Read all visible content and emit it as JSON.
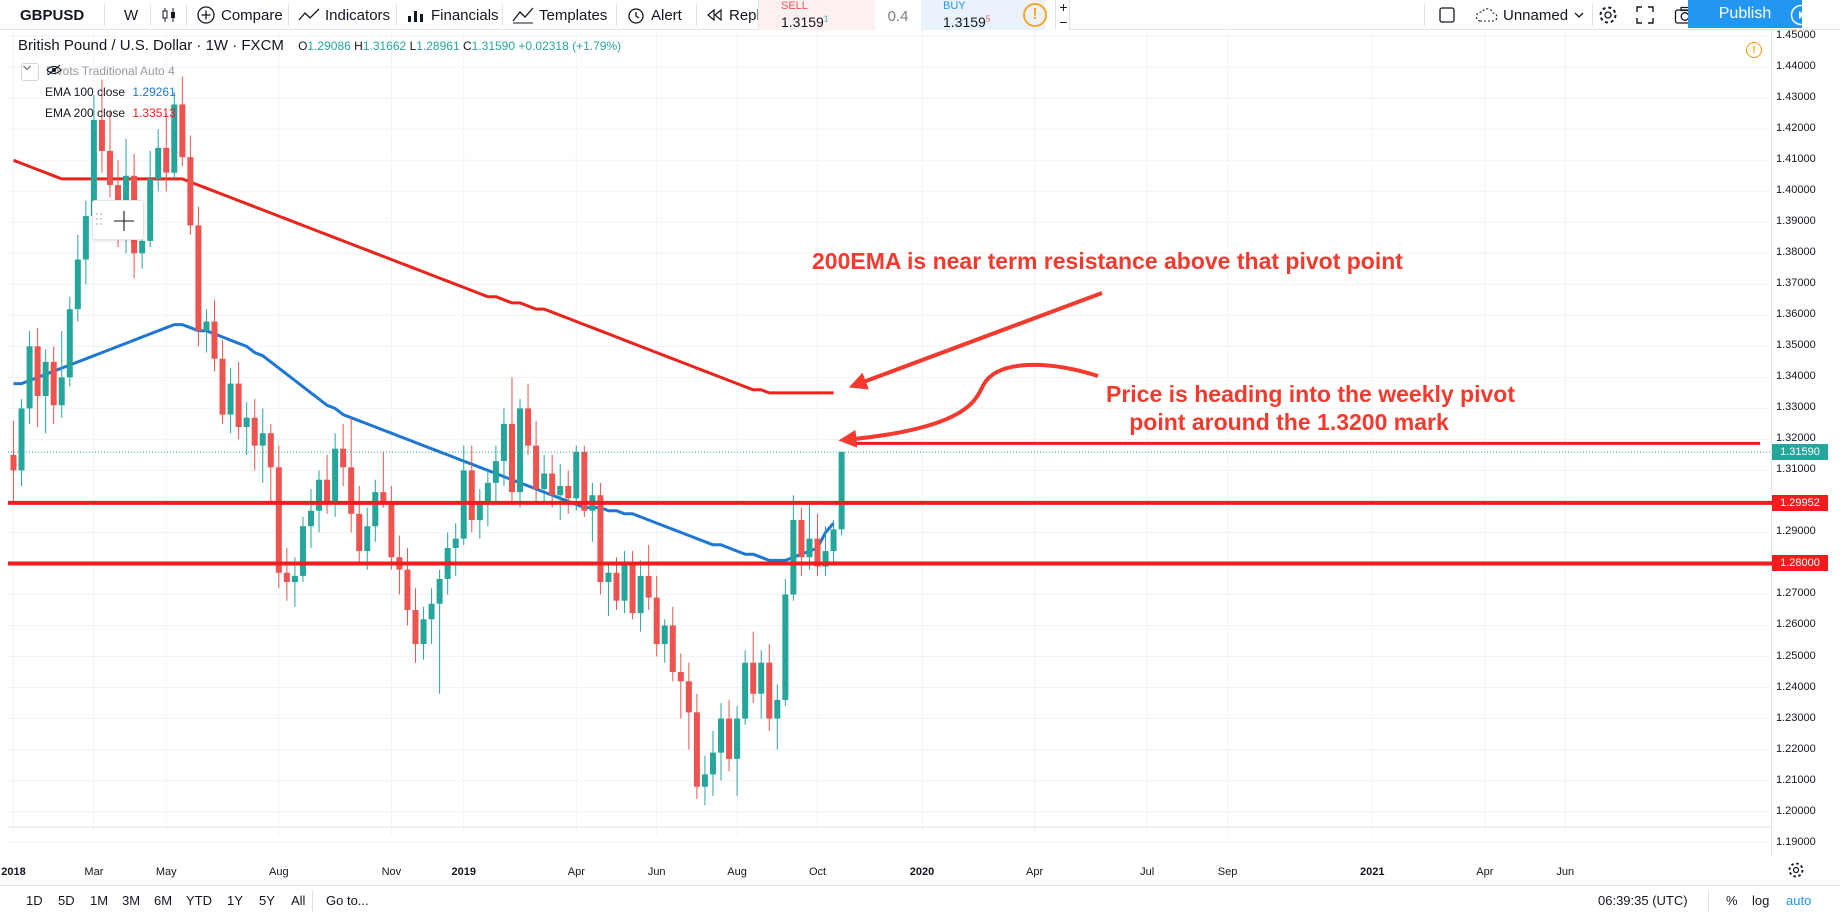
{
  "toolbar": {
    "symbol": "GBPUSD",
    "interval": "W",
    "compare": "Compare",
    "indicators": "Indicators",
    "financials": "Financials",
    "templates": "Templates",
    "alert": "Alert",
    "replay": "Repl",
    "layout_name": "Unnamed",
    "publish": "Publish"
  },
  "trade": {
    "sell_label": "SELL",
    "sell_price": "1.3159",
    "sell_sup": "1",
    "spread": "0.4",
    "buy_label": "BUY",
    "buy_price": "1.3159",
    "buy_sup": "5"
  },
  "legend": {
    "title": "British Pound / U.S. Dollar · 1W · FXCM",
    "o_label": "O",
    "o": "1.29086",
    "h_label": "H",
    "h": "1.31662",
    "l_label": "L",
    "l": "1.28961",
    "c_label": "C",
    "c": "1.31590",
    "change": "+0.02318 (+1.79%)",
    "pivots": "Pivots Traditional Auto 4",
    "ema100_label": "EMA 100 close",
    "ema100_value": "1.29261",
    "ema200_label": "EMA 200 close",
    "ema200_value": "1.33513"
  },
  "price_labels": {
    "current": "1.31590",
    "line1": "1.29952",
    "line2": "1.28000"
  },
  "annotations": {
    "ema_note": "200EMA is near term resistance above that pivot point",
    "pivot_note_1": "Price is heading into the weekly pivot",
    "pivot_note_2": "point around the 1.3200 mark"
  },
  "bottom": {
    "ranges": [
      "1D",
      "5D",
      "1M",
      "3M",
      "6M",
      "YTD",
      "1Y",
      "5Y",
      "All"
    ],
    "goto": "Go to...",
    "time": "06:39:35 (UTC)",
    "percent": "%",
    "log": "log",
    "auto": "auto"
  },
  "colors": {
    "up": "#26a69a",
    "down": "#ef5350",
    "ema100": "#1e77d3",
    "ema200": "#e8241c",
    "level": "#f21c1c",
    "accent": "#2196f3",
    "annotation": "#f23b2e"
  },
  "chart_data": {
    "type": "candlestick",
    "symbol": "GBPUSD",
    "timeframe": "1W",
    "x_ticks": [
      {
        "label": "2018",
        "bold": true,
        "start": 0
      },
      {
        "label": "Mar",
        "start": 10
      },
      {
        "label": "May",
        "start": 19
      },
      {
        "label": "Aug",
        "start": 33
      },
      {
        "label": "Nov",
        "start": 47
      },
      {
        "label": "2019",
        "bold": true,
        "start": 56
      },
      {
        "label": "Apr",
        "start": 70
      },
      {
        "label": "Jun",
        "start": 80
      },
      {
        "label": "Aug",
        "start": 90
      },
      {
        "label": "Oct",
        "start": 100
      },
      {
        "label": "2020",
        "bold": true,
        "start": 113
      },
      {
        "label": "Apr",
        "start": 127
      },
      {
        "label": "Jul",
        "start": 141
      },
      {
        "label": "Sep",
        "start": 151
      },
      {
        "label": "2021",
        "bold": true,
        "start": 169
      },
      {
        "label": "Apr",
        "start": 183
      },
      {
        "label": "Jun",
        "start": 193
      }
    ],
    "y_ticks": [
      "1.45000",
      "1.44000",
      "1.43000",
      "1.42000",
      "1.41000",
      "1.40000",
      "1.39000",
      "1.38000",
      "1.37000",
      "1.36000",
      "1.35000",
      "1.34000",
      "1.33000",
      "1.32000",
      "1.31000",
      "1.30000",
      "1.29000",
      "1.28000",
      "1.27000",
      "1.26000",
      "1.25000",
      "1.24000",
      "1.23000",
      "1.22000",
      "1.21000",
      "1.20000",
      "1.19000"
    ],
    "ylim": [
      1.186,
      1.452
    ],
    "horizontal_levels": [
      1.29952,
      1.28,
      1.32
    ],
    "current_price": 1.3159,
    "candles": [
      [
        1.315,
        1.326,
        1.3,
        1.31
      ],
      [
        1.31,
        1.333,
        1.305,
        1.33
      ],
      [
        1.33,
        1.355,
        1.325,
        1.35
      ],
      [
        1.35,
        1.356,
        1.324,
        1.334
      ],
      [
        1.334,
        1.349,
        1.322,
        1.345
      ],
      [
        1.345,
        1.35,
        1.325,
        1.331
      ],
      [
        1.331,
        1.355,
        1.327,
        1.34
      ],
      [
        1.34,
        1.366,
        1.337,
        1.362
      ],
      [
        1.362,
        1.386,
        1.358,
        1.378
      ],
      [
        1.378,
        1.397,
        1.37,
        1.392
      ],
      [
        1.392,
        1.431,
        1.388,
        1.423
      ],
      [
        1.423,
        1.436,
        1.406,
        1.413
      ],
      [
        1.413,
        1.426,
        1.398,
        1.402
      ],
      [
        1.402,
        1.41,
        1.382,
        1.386
      ],
      [
        1.386,
        1.417,
        1.38,
        1.405
      ],
      [
        1.405,
        1.412,
        1.372,
        1.38
      ],
      [
        1.38,
        1.395,
        1.375,
        1.384
      ],
      [
        1.384,
        1.413,
        1.382,
        1.404
      ],
      [
        1.404,
        1.42,
        1.4,
        1.414
      ],
      [
        1.414,
        1.425,
        1.4,
        1.406
      ],
      [
        1.406,
        1.432,
        1.404,
        1.428
      ],
      [
        1.428,
        1.437,
        1.408,
        1.411
      ],
      [
        1.411,
        1.418,
        1.386,
        1.389
      ],
      [
        1.389,
        1.395,
        1.35,
        1.355
      ],
      [
        1.355,
        1.362,
        1.348,
        1.358
      ],
      [
        1.358,
        1.365,
        1.342,
        1.346
      ],
      [
        1.346,
        1.352,
        1.325,
        1.328
      ],
      [
        1.328,
        1.343,
        1.322,
        1.338
      ],
      [
        1.338,
        1.345,
        1.32,
        1.324
      ],
      [
        1.324,
        1.332,
        1.315,
        1.327
      ],
      [
        1.327,
        1.333,
        1.31,
        1.318
      ],
      [
        1.318,
        1.33,
        1.306,
        1.322
      ],
      [
        1.322,
        1.325,
        1.3,
        1.311
      ],
      [
        1.311,
        1.318,
        1.272,
        1.277
      ],
      [
        1.277,
        1.285,
        1.268,
        1.274
      ],
      [
        1.274,
        1.282,
        1.266,
        1.276
      ],
      [
        1.276,
        1.295,
        1.274,
        1.292
      ],
      [
        1.292,
        1.304,
        1.285,
        1.297
      ],
      [
        1.297,
        1.31,
        1.29,
        1.307
      ],
      [
        1.307,
        1.315,
        1.296,
        1.299
      ],
      [
        1.299,
        1.322,
        1.295,
        1.317
      ],
      [
        1.317,
        1.325,
        1.305,
        1.311
      ],
      [
        1.311,
        1.327,
        1.29,
        1.296
      ],
      [
        1.296,
        1.305,
        1.28,
        1.284
      ],
      [
        1.284,
        1.298,
        1.278,
        1.292
      ],
      [
        1.292,
        1.307,
        1.287,
        1.303
      ],
      [
        1.303,
        1.316,
        1.298,
        1.3
      ],
      [
        1.3,
        1.305,
        1.278,
        1.282
      ],
      [
        1.282,
        1.289,
        1.27,
        1.278
      ],
      [
        1.278,
        1.285,
        1.26,
        1.265
      ],
      [
        1.265,
        1.272,
        1.248,
        1.254
      ],
      [
        1.254,
        1.266,
        1.249,
        1.262
      ],
      [
        1.262,
        1.272,
        1.254,
        1.267
      ],
      [
        1.267,
        1.278,
        1.238,
        1.275
      ],
      [
        1.275,
        1.29,
        1.27,
        1.285
      ],
      [
        1.285,
        1.293,
        1.276,
        1.288
      ],
      [
        1.288,
        1.318,
        1.286,
        1.31
      ],
      [
        1.31,
        1.318,
        1.29,
        1.294
      ],
      [
        1.294,
        1.304,
        1.288,
        1.299
      ],
      [
        1.299,
        1.31,
        1.292,
        1.306
      ],
      [
        1.306,
        1.318,
        1.3,
        1.313
      ],
      [
        1.313,
        1.33,
        1.305,
        1.325
      ],
      [
        1.325,
        1.34,
        1.3,
        1.303
      ],
      [
        1.303,
        1.333,
        1.298,
        1.33
      ],
      [
        1.33,
        1.338,
        1.315,
        1.318
      ],
      [
        1.318,
        1.326,
        1.3,
        1.304
      ],
      [
        1.304,
        1.315,
        1.299,
        1.309
      ],
      [
        1.309,
        1.315,
        1.298,
        1.302
      ],
      [
        1.302,
        1.312,
        1.294,
        1.305
      ],
      [
        1.305,
        1.31,
        1.296,
        1.301
      ],
      [
        1.301,
        1.318,
        1.297,
        1.316
      ],
      [
        1.316,
        1.318,
        1.295,
        1.297
      ],
      [
        1.297,
        1.306,
        1.287,
        1.302
      ],
      [
        1.302,
        1.306,
        1.27,
        1.274
      ],
      [
        1.274,
        1.28,
        1.263,
        1.277
      ],
      [
        1.277,
        1.282,
        1.265,
        1.268
      ],
      [
        1.268,
        1.284,
        1.264,
        1.28
      ],
      [
        1.28,
        1.284,
        1.262,
        1.264
      ],
      [
        1.264,
        1.281,
        1.258,
        1.276
      ],
      [
        1.276,
        1.286,
        1.265,
        1.269
      ],
      [
        1.269,
        1.276,
        1.25,
        1.254
      ],
      [
        1.254,
        1.262,
        1.248,
        1.26
      ],
      [
        1.26,
        1.266,
        1.242,
        1.245
      ],
      [
        1.245,
        1.251,
        1.23,
        1.242
      ],
      [
        1.242,
        1.248,
        1.22,
        1.232
      ],
      [
        1.232,
        1.238,
        1.204,
        1.208
      ],
      [
        1.208,
        1.218,
        1.202,
        1.212
      ],
      [
        1.212,
        1.226,
        1.205,
        1.219
      ],
      [
        1.219,
        1.235,
        1.21,
        1.23
      ],
      [
        1.23,
        1.236,
        1.213,
        1.217
      ],
      [
        1.217,
        1.234,
        1.205,
        1.23
      ],
      [
        1.23,
        1.252,
        1.228,
        1.248
      ],
      [
        1.248,
        1.258,
        1.235,
        1.238
      ],
      [
        1.238,
        1.252,
        1.23,
        1.248
      ],
      [
        1.248,
        1.254,
        1.226,
        1.23
      ],
      [
        1.23,
        1.241,
        1.22,
        1.236
      ],
      [
        1.236,
        1.275,
        1.234,
        1.27
      ],
      [
        1.27,
        1.302,
        1.268,
        1.294
      ],
      [
        1.294,
        1.298,
        1.276,
        1.282
      ],
      [
        1.282,
        1.3,
        1.278,
        1.288
      ],
      [
        1.288,
        1.296,
        1.276,
        1.279
      ],
      [
        1.279,
        1.292,
        1.276,
        1.284
      ],
      [
        1.284,
        1.294,
        1.28,
        1.291
      ],
      [
        1.291,
        1.316,
        1.289,
        1.316
      ]
    ],
    "series": [
      {
        "name": "EMA 100 close",
        "values": [
          1.338,
          1.338,
          1.339,
          1.34,
          1.341,
          1.342,
          1.343,
          1.344,
          1.345,
          1.346,
          1.347,
          1.348,
          1.349,
          1.35,
          1.351,
          1.352,
          1.353,
          1.354,
          1.355,
          1.356,
          1.357,
          1.357,
          1.356,
          1.355,
          1.355,
          1.354,
          1.353,
          1.352,
          1.351,
          1.35,
          1.348,
          1.347,
          1.345,
          1.343,
          1.341,
          1.339,
          1.337,
          1.335,
          1.333,
          1.331,
          1.33,
          1.328,
          1.327,
          1.326,
          1.325,
          1.324,
          1.323,
          1.322,
          1.321,
          1.32,
          1.319,
          1.318,
          1.317,
          1.316,
          1.315,
          1.314,
          1.313,
          1.312,
          1.311,
          1.31,
          1.309,
          1.308,
          1.307,
          1.306,
          1.305,
          1.304,
          1.303,
          1.302,
          1.301,
          1.3,
          1.299,
          1.298,
          1.298,
          1.298,
          1.297,
          1.297,
          1.296,
          1.296,
          1.295,
          1.294,
          1.293,
          1.292,
          1.291,
          1.29,
          1.289,
          1.288,
          1.287,
          1.286,
          1.286,
          1.285,
          1.284,
          1.283,
          1.283,
          1.282,
          1.281,
          1.281,
          1.281,
          1.282,
          1.283,
          1.284,
          1.285,
          1.29,
          1.293
        ]
      },
      {
        "name": "EMA 200 close",
        "values": [
          1.41,
          1.409,
          1.408,
          1.407,
          1.406,
          1.405,
          1.404,
          1.404,
          1.404,
          1.404,
          1.404,
          1.404,
          1.404,
          1.404,
          1.404,
          1.404,
          1.404,
          1.404,
          1.404,
          1.404,
          1.404,
          1.404,
          1.403,
          1.402,
          1.401,
          1.4,
          1.399,
          1.398,
          1.397,
          1.396,
          1.395,
          1.394,
          1.393,
          1.392,
          1.391,
          1.39,
          1.389,
          1.388,
          1.387,
          1.386,
          1.385,
          1.384,
          1.383,
          1.382,
          1.381,
          1.38,
          1.379,
          1.378,
          1.377,
          1.376,
          1.375,
          1.374,
          1.373,
          1.372,
          1.371,
          1.37,
          1.369,
          1.368,
          1.367,
          1.366,
          1.366,
          1.365,
          1.364,
          1.364,
          1.363,
          1.362,
          1.362,
          1.361,
          1.36,
          1.359,
          1.358,
          1.357,
          1.356,
          1.355,
          1.354,
          1.353,
          1.352,
          1.351,
          1.35,
          1.349,
          1.348,
          1.347,
          1.346,
          1.345,
          1.344,
          1.343,
          1.342,
          1.341,
          1.34,
          1.339,
          1.338,
          1.337,
          1.336,
          1.336,
          1.335,
          1.335,
          1.335,
          1.335,
          1.335,
          1.335,
          1.335,
          1.335,
          1.335
        ]
      }
    ]
  }
}
